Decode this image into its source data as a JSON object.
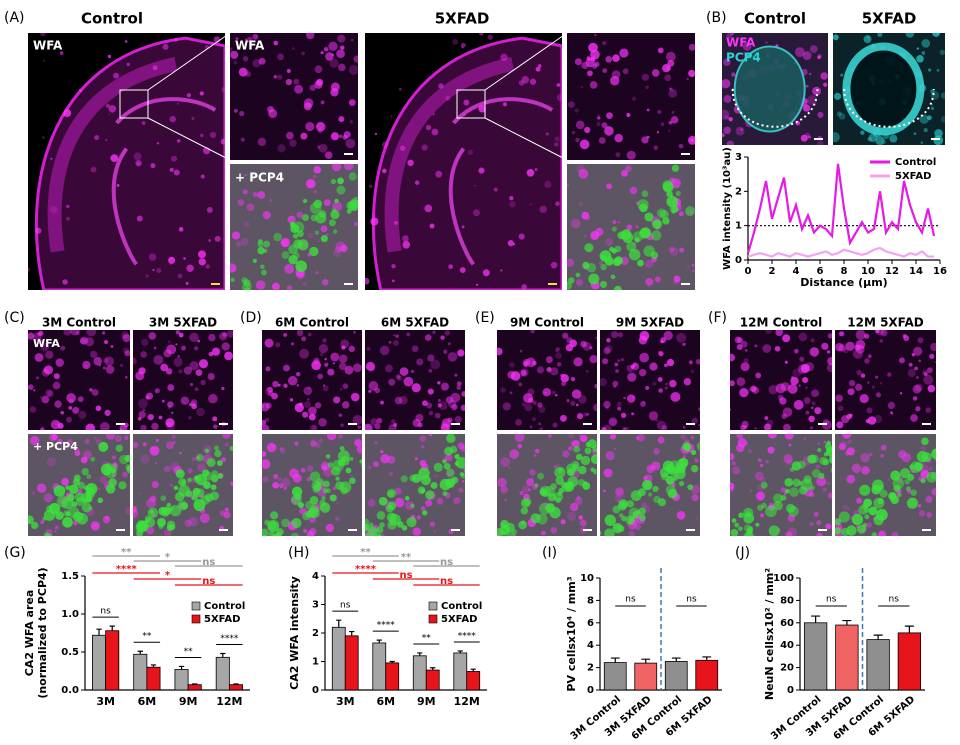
{
  "panel_labels": [
    "(A)",
    "(B)",
    "(C)",
    "(D)",
    "(E)",
    "(F)",
    "(G)",
    "(H)",
    "(I)",
    "(J)"
  ],
  "panel_a": {
    "titles": [
      "Control",
      "5XFAD"
    ],
    "image_labels": [
      "WFA",
      "WFA",
      "+ PCP4"
    ]
  },
  "panel_b": {
    "titles": [
      "Control",
      "5XFAD"
    ],
    "image_labels": [
      "WFA",
      "PCP4"
    ]
  },
  "row_cf": {
    "titles": [
      "3M Control",
      "3M 5XFAD",
      "6M Control",
      "6M 5XFAD",
      "9M Control",
      "9M 5XFAD",
      "12M Control",
      "12M 5XFAD"
    ],
    "image_labels": [
      "WFA",
      "+ PCP4"
    ]
  },
  "chart_data": [
    {
      "type": "line",
      "xlabel": "Distance (μm)",
      "ylabel": "WFA intensity (10³au)",
      "x": [
        0,
        0.5,
        1,
        1.5,
        2,
        2.5,
        3,
        3.5,
        4,
        4.5,
        5,
        5.5,
        6,
        6.5,
        7,
        7.5,
        8,
        8.5,
        9,
        9.5,
        10,
        10.5,
        11,
        11.5,
        12,
        12.5,
        13,
        13.5,
        14,
        14.5,
        15,
        15.5
      ],
      "series": [
        {
          "name": "Control",
          "color": "#e619e6",
          "values": [
            0.2,
            0.8,
            1.5,
            2.3,
            1.2,
            1.8,
            2.4,
            1.1,
            1.6,
            0.9,
            1.3,
            0.8,
            1.0,
            0.9,
            0.7,
            2.8,
            1.5,
            0.5,
            0.8,
            1.1,
            0.8,
            0.9,
            2.0,
            0.8,
            1.1,
            0.9,
            2.3,
            1.6,
            1.1,
            0.8,
            1.5,
            0.7
          ]
        },
        {
          "name": "5XFAD",
          "color": "#f5a3f0",
          "values": [
            0.1,
            0.15,
            0.2,
            0.15,
            0.1,
            0.2,
            0.15,
            0.1,
            0.2,
            0.15,
            0.1,
            0.15,
            0.2,
            0.25,
            0.15,
            0.2,
            0.3,
            0.25,
            0.2,
            0.15,
            0.2,
            0.3,
            0.35,
            0.25,
            0.2,
            0.15,
            0.1,
            0.2,
            0.15,
            0.25,
            0.1,
            0.1
          ]
        }
      ],
      "xlim": [
        0,
        16
      ],
      "xticks": [
        0,
        2,
        4,
        6,
        8,
        10,
        12,
        14,
        16
      ],
      "ylim": [
        0,
        3
      ],
      "yticks": [
        0,
        1,
        2,
        3
      ],
      "reference_line": 1,
      "legend": "upper right"
    },
    {
      "type": "bar",
      "ylabel": [
        "CA2 WFA area",
        "(normalized to PCP4)"
      ],
      "categories": [
        "3M",
        "6M",
        "9M",
        "12M"
      ],
      "series": [
        {
          "name": "Control",
          "color": "#a6a6a6",
          "values": [
            0.72,
            0.47,
            0.27,
            0.43
          ],
          "errors": [
            0.08,
            0.04,
            0.04,
            0.05
          ]
        },
        {
          "name": "5XFAD",
          "color": "#e8141b",
          "values": [
            0.78,
            0.3,
            0.07,
            0.07
          ],
          "errors": [
            0.06,
            0.03,
            0.01,
            0.01
          ]
        }
      ],
      "ylim": [
        0,
        1.5
      ],
      "yticks": [
        {
          "value": 0,
          "label": "0.0"
        },
        0.5,
        {
          "value": 1,
          "label": "1.0"
        },
        1.5
      ],
      "pair_labels": [
        "ns",
        "**",
        "**",
        "****"
      ],
      "comparisons": [
        {
          "color": "#999999",
          "labels": [
            "**",
            "*",
            "ns"
          ]
        },
        {
          "color": "#e8141b",
          "labels": [
            "****",
            "*",
            "ns"
          ]
        }
      ],
      "legend": "upper right"
    },
    {
      "type": "bar",
      "ylabel": [
        "CA2 WFA intensity"
      ],
      "categories": [
        "3M",
        "6M",
        "9M",
        "12M"
      ],
      "series": [
        {
          "name": "Control",
          "color": "#a6a6a6",
          "values": [
            2.2,
            1.65,
            1.2,
            1.3
          ],
          "errors": [
            0.25,
            0.1,
            0.1,
            0.07
          ]
        },
        {
          "name": "5XFAD",
          "color": "#e8141b",
          "values": [
            1.9,
            0.95,
            0.7,
            0.65
          ],
          "errors": [
            0.15,
            0.05,
            0.08,
            0.08
          ]
        }
      ],
      "ylim": [
        0,
        4
      ],
      "yticks": [
        0,
        1,
        2,
        3,
        4
      ],
      "pair_labels": [
        "ns",
        "****",
        "**",
        "****"
      ],
      "comparisons": [
        {
          "color": "#999999",
          "labels": [
            "**",
            "**",
            "ns"
          ]
        },
        {
          "color": "#e8141b",
          "labels": [
            "****",
            "ns",
            "ns"
          ]
        }
      ],
      "legend": "upper right"
    },
    {
      "type": "bar",
      "ylabel": [
        "PV cellsx10⁴ / mm³"
      ],
      "categories": [
        "3M Control",
        "3M 5XFAD",
        "6M Control",
        "6M 5XFAD"
      ],
      "values": [
        2.45,
        2.4,
        2.55,
        2.65
      ],
      "errors": [
        0.4,
        0.35,
        0.3,
        0.3
      ],
      "colors": [
        "#8f8f8f",
        "#f06464",
        "#8f8f8f",
        "#e8141b"
      ],
      "ylim": [
        0,
        10
      ],
      "yticks": [
        0,
        2,
        4,
        6,
        8,
        10
      ],
      "pair_labels": [
        "ns",
        "ns"
      ]
    },
    {
      "type": "bar",
      "ylabel": [
        "NeuN cellsx10² / mm²"
      ],
      "categories": [
        "3M Control",
        "3M 5XFAD",
        "6M Control",
        "6M 5XFAD"
      ],
      "values": [
        60,
        58,
        45,
        51
      ],
      "errors": [
        6,
        4,
        4,
        6
      ],
      "colors": [
        "#8f8f8f",
        "#f06464",
        "#8f8f8f",
        "#e8141b"
      ],
      "ylim": [
        0,
        100
      ],
      "yticks": [
        0,
        20,
        40,
        60,
        80,
        100
      ],
      "pair_labels": [
        "ns",
        "ns"
      ]
    }
  ]
}
